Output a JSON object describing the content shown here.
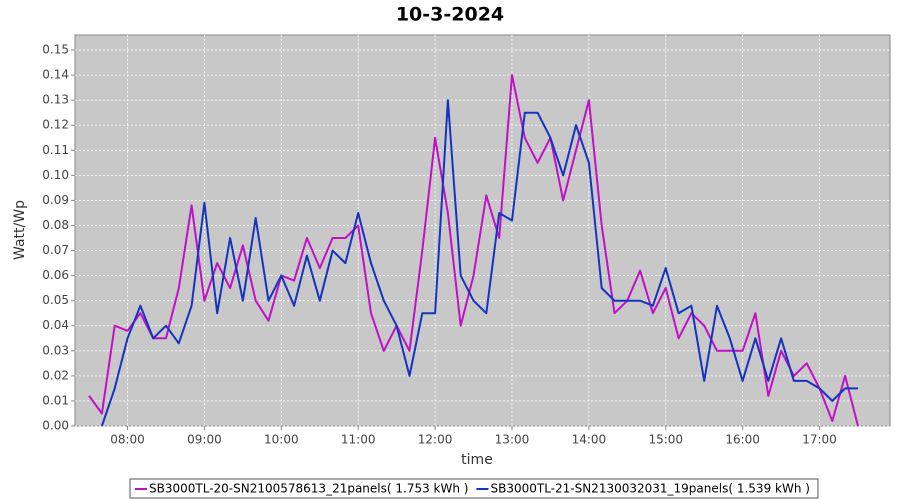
{
  "chart_data": {
    "type": "line",
    "title": "10-3-2024",
    "x_label": "time",
    "y_label": "Watt/Wp",
    "x": [
      "07:30",
      "07:40",
      "07:50",
      "08:00",
      "08:10",
      "08:20",
      "08:30",
      "08:40",
      "08:50",
      "09:00",
      "09:10",
      "09:20",
      "09:30",
      "09:40",
      "09:50",
      "10:00",
      "10:10",
      "10:20",
      "10:30",
      "10:40",
      "10:50",
      "11:00",
      "11:10",
      "11:20",
      "11:30",
      "11:40",
      "11:50",
      "12:00",
      "12:10",
      "12:20",
      "12:30",
      "12:40",
      "12:50",
      "13:00",
      "13:10",
      "13:20",
      "13:30",
      "13:40",
      "13:50",
      "14:00",
      "14:10",
      "14:20",
      "14:30",
      "14:40",
      "14:50",
      "15:00",
      "15:10",
      "15:20",
      "15:30",
      "15:40",
      "15:50",
      "16:00",
      "16:10",
      "16:20",
      "16:30",
      "16:40",
      "16:50",
      "17:00",
      "17:10",
      "17:20",
      "17:30"
    ],
    "series": [
      {
        "name": "SB3000TL-20-SN2100578613_21panels( 1.753 kWh )",
        "color": "#c010c8",
        "values": [
          0.012,
          0.005,
          0.04,
          0.038,
          0.045,
          0.035,
          0.035,
          0.055,
          0.088,
          0.05,
          0.065,
          0.055,
          0.072,
          0.05,
          0.042,
          0.06,
          0.058,
          0.075,
          0.063,
          0.075,
          0.075,
          0.08,
          0.045,
          0.03,
          0.04,
          0.03,
          0.07,
          0.115,
          0.085,
          0.04,
          0.06,
          0.092,
          0.075,
          0.14,
          0.115,
          0.105,
          0.115,
          0.09,
          0.11,
          0.13,
          0.08,
          0.045,
          0.05,
          0.062,
          0.045,
          0.055,
          0.035,
          0.045,
          0.04,
          0.03,
          0.03,
          0.03,
          0.045,
          0.012,
          0.03,
          0.02,
          0.025,
          0.015,
          0.002,
          0.02,
          0.0
        ]
      },
      {
        "name": "SB3000TL-21-SN2130032031_19panels( 1.539 kWh )",
        "color": "#1434c0",
        "values": [
          null,
          0.0,
          0.015,
          0.035,
          0.048,
          0.035,
          0.04,
          0.033,
          0.048,
          0.089,
          0.045,
          0.075,
          0.05,
          0.083,
          0.05,
          0.06,
          0.048,
          0.068,
          0.05,
          0.07,
          0.065,
          0.085,
          0.065,
          0.05,
          0.04,
          0.02,
          0.045,
          0.045,
          0.13,
          0.06,
          0.05,
          0.045,
          0.085,
          0.082,
          0.125,
          0.125,
          0.115,
          0.1,
          0.12,
          0.105,
          0.055,
          0.05,
          0.05,
          0.05,
          0.048,
          0.063,
          0.045,
          0.048,
          0.018,
          0.048,
          0.035,
          0.018,
          0.035,
          0.018,
          0.035,
          0.018,
          0.018,
          0.015,
          0.01,
          0.015,
          0.015
        ]
      }
    ],
    "xlim": [
      "07:19",
      "17:55"
    ],
    "xticks": [
      "08:00",
      "09:00",
      "10:00",
      "11:00",
      "12:00",
      "13:00",
      "14:00",
      "15:00",
      "16:00",
      "17:00"
    ],
    "ylim": [
      0,
      0.156
    ],
    "yticks": [
      {
        "value": 0,
        "label": "0.00"
      },
      0.01,
      0.02,
      0.03,
      0.04,
      0.05,
      0.06,
      0.07,
      0.08,
      0.09,
      {
        "value": 0.1,
        "label": "0.10"
      },
      0.11,
      0.12,
      0.13,
      0.14,
      0.15
    ],
    "grid": true,
    "legend": "bottom"
  }
}
